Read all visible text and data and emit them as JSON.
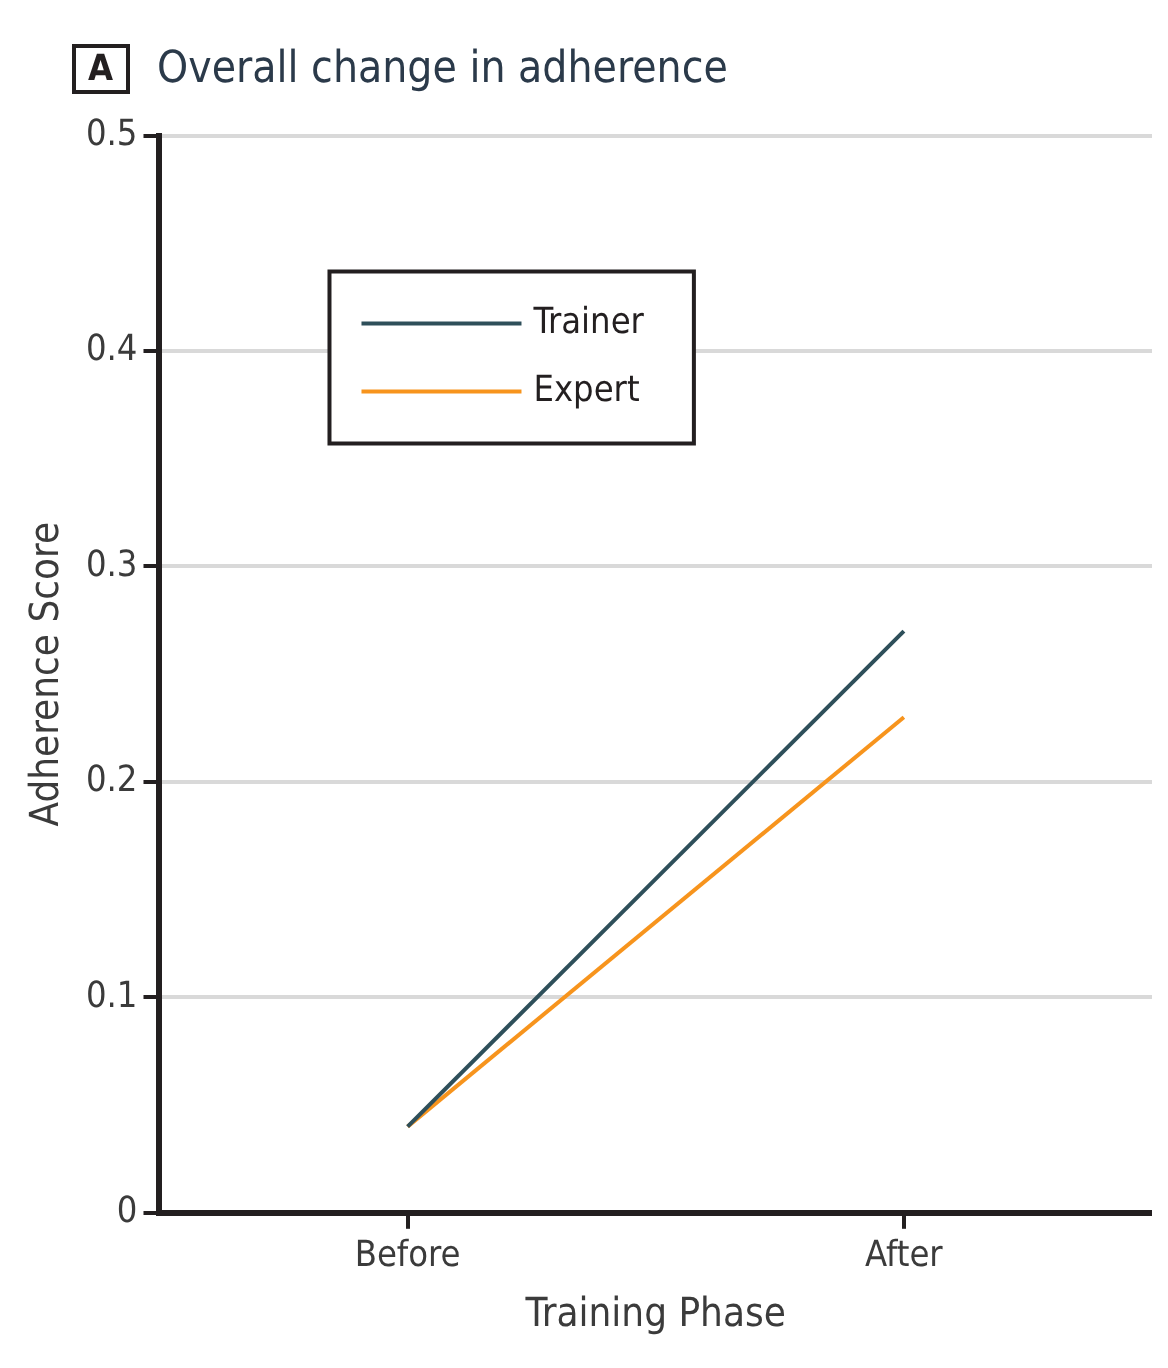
{
  "chart_data": {
    "type": "line",
    "title": "Overall change in adherence",
    "annotations": [
      "A"
    ],
    "xlabel": "Training Phase",
    "ylabel": "Adherence Score",
    "categories": [
      "Before",
      "After"
    ],
    "series": [
      {
        "name": "Trainer",
        "color": "#2e4f5a",
        "values": [
          0.04,
          0.27
        ]
      },
      {
        "name": "Expert",
        "color": "#f7941d",
        "values": [
          0.04,
          0.23
        ]
      }
    ],
    "ylim": [
      0,
      0.5
    ],
    "yticks": [
      0,
      0.1,
      0.2,
      0.3,
      0.4,
      0.5
    ],
    "grid": "y",
    "legend": "top left",
    "marker": "none",
    "line_style": "solid"
  }
}
